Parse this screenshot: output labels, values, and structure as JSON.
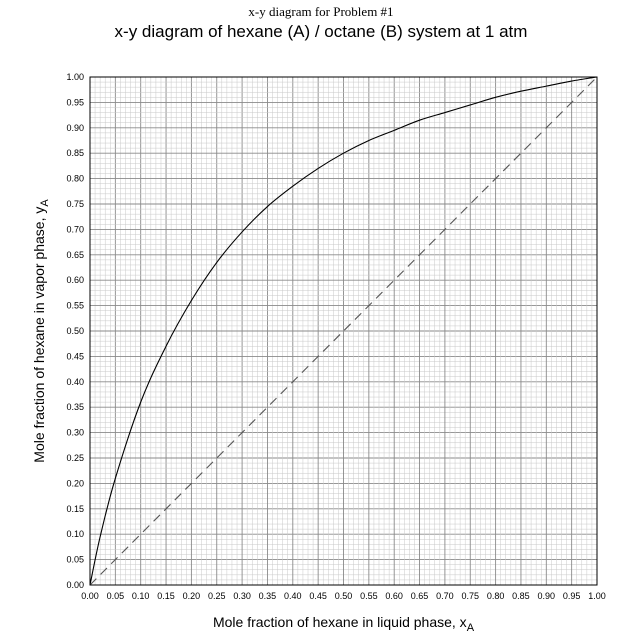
{
  "page_title": "x-y diagram for Problem #1",
  "chart_data": {
    "type": "line",
    "title": "x-y diagram of hexane (A) / octane (B) system at 1 atm",
    "xlabel": "Mole fraction of hexane in liquid phase, x",
    "xlabel_subscript": "A",
    "ylabel": "Mole fraction of hexane in vapor phase, y",
    "ylabel_subscript": "A",
    "xlim": [
      0,
      1
    ],
    "ylim": [
      0,
      1
    ],
    "grid": true,
    "minor_grid_step": 0.01,
    "major_grid_step": 0.05,
    "xticks": [
      "0.00",
      "0.05",
      "0.10",
      "0.15",
      "0.20",
      "0.25",
      "0.30",
      "0.35",
      "0.40",
      "0.45",
      "0.50",
      "0.55",
      "0.60",
      "0.65",
      "0.70",
      "0.75",
      "0.80",
      "0.85",
      "0.90",
      "0.95",
      "1.00"
    ],
    "yticks": [
      "0.00",
      "0.05",
      "0.10",
      "0.15",
      "0.20",
      "0.25",
      "0.30",
      "0.35",
      "0.40",
      "0.45",
      "0.50",
      "0.55",
      "0.60",
      "0.65",
      "0.70",
      "0.75",
      "0.80",
      "0.85",
      "0.90",
      "0.95",
      "1.00"
    ],
    "series": [
      {
        "style": "solid",
        "color": "#000000",
        "x": [
          0.0,
          0.02,
          0.05,
          0.1,
          0.15,
          0.2,
          0.25,
          0.3,
          0.35,
          0.4,
          0.45,
          0.5,
          0.55,
          0.6,
          0.65,
          0.7,
          0.75,
          0.8,
          0.85,
          0.9,
          0.95,
          1.0
        ],
        "y": [
          0.0,
          0.095,
          0.21,
          0.36,
          0.47,
          0.56,
          0.635,
          0.695,
          0.745,
          0.785,
          0.82,
          0.85,
          0.875,
          0.895,
          0.915,
          0.93,
          0.945,
          0.96,
          0.972,
          0.982,
          0.992,
          1.0
        ]
      },
      {
        "style": "dashed",
        "color": "#000000",
        "x": [
          0.0,
          1.0
        ],
        "y": [
          0.0,
          1.0
        ]
      }
    ]
  }
}
